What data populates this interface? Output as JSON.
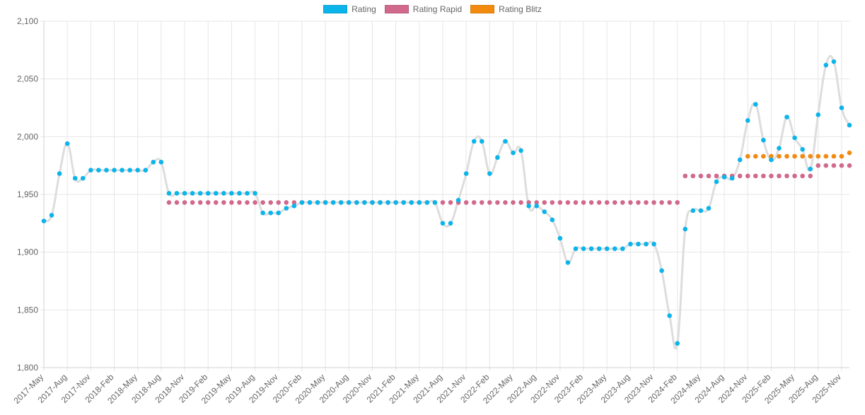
{
  "chart_data": {
    "type": "line",
    "title": "",
    "xlabel": "",
    "ylabel": "",
    "ylim": [
      1800,
      2100
    ],
    "yticks": [
      1800,
      1850,
      1900,
      1950,
      2000,
      2050,
      2100
    ],
    "ytick_labels": [
      "1,800",
      "1,850",
      "1,900",
      "1,950",
      "2,000",
      "2,050",
      "2,100"
    ],
    "grid": true,
    "legend_position": "top-center",
    "x_labels": [
      "2017-May",
      "2017-Aug",
      "2017-Nov",
      "2018-Feb",
      "2018-May",
      "2018-Aug",
      "2018-Nov",
      "2019-Feb",
      "2019-May",
      "2019-Aug",
      "2019-Nov",
      "2020-Feb",
      "2020-May",
      "2020-Aug",
      "2020-Nov",
      "2021-Feb",
      "2021-May",
      "2021-Aug",
      "2021-Nov",
      "2022-Feb",
      "2022-May",
      "2022-Aug",
      "2022-Nov",
      "2023-Feb",
      "2023-May",
      "2023-Aug",
      "2023-Nov",
      "2024-Feb",
      "2024-May",
      "2024-Aug",
      "2024-Nov",
      "2025-Feb",
      "2025-May",
      "2025-Aug",
      "2025-Nov"
    ],
    "x": [
      "2017-05",
      "2017-06",
      "2017-07",
      "2017-08",
      "2017-09",
      "2017-10",
      "2017-11",
      "2017-12",
      "2018-01",
      "2018-02",
      "2018-03",
      "2018-04",
      "2018-05",
      "2018-06",
      "2018-07",
      "2018-08",
      "2018-09",
      "2018-10",
      "2018-11",
      "2018-12",
      "2019-01",
      "2019-02",
      "2019-03",
      "2019-04",
      "2019-05",
      "2019-06",
      "2019-07",
      "2019-08",
      "2019-09",
      "2019-10",
      "2019-11",
      "2019-12",
      "2020-01",
      "2020-02",
      "2020-03",
      "2020-04",
      "2020-05",
      "2020-06",
      "2020-07",
      "2020-08",
      "2020-09",
      "2020-10",
      "2020-11",
      "2020-12",
      "2021-01",
      "2021-02",
      "2021-03",
      "2021-04",
      "2021-05",
      "2021-06",
      "2021-07",
      "2021-08",
      "2021-09",
      "2021-10",
      "2021-11",
      "2021-12",
      "2022-01",
      "2022-02",
      "2022-03",
      "2022-04",
      "2022-05",
      "2022-06",
      "2022-07",
      "2022-08",
      "2022-09",
      "2022-10",
      "2022-11",
      "2022-12",
      "2023-01",
      "2023-02",
      "2023-03",
      "2023-04",
      "2023-05",
      "2023-06",
      "2023-07",
      "2023-08",
      "2023-09",
      "2023-10",
      "2023-11",
      "2023-12",
      "2024-01",
      "2024-02",
      "2024-03",
      "2024-04",
      "2024-05",
      "2024-06",
      "2024-07",
      "2024-08",
      "2024-09",
      "2024-10",
      "2024-11",
      "2024-12",
      "2025-01",
      "2025-02",
      "2025-03",
      "2025-04",
      "2025-05",
      "2025-06",
      "2025-07",
      "2025-08",
      "2025-09",
      "2025-10",
      "2025-11",
      "2025-12"
    ],
    "series": [
      {
        "name": "Rating",
        "color": "#0bb4ea",
        "line_color": "#dddddd",
        "values": [
          1927,
          1932,
          1968,
          1994,
          1964,
          1964,
          1971,
          1971,
          1971,
          1971,
          1971,
          1971,
          1971,
          1971,
          1978,
          1978,
          1951,
          1951,
          1951,
          1951,
          1951,
          1951,
          1951,
          1951,
          1951,
          1951,
          1951,
          1951,
          1934,
          1934,
          1934,
          1938,
          1940,
          1943,
          1943,
          1943,
          1943,
          1943,
          1943,
          1943,
          1943,
          1943,
          1943,
          1943,
          1943,
          1943,
          1943,
          1943,
          1943,
          1943,
          1943,
          1925,
          1925,
          1945,
          1968,
          1996,
          1996,
          1968,
          1982,
          1996,
          1986,
          1988,
          1940,
          1940,
          1935,
          1928,
          1912,
          1891,
          1903,
          1903,
          1903,
          1903,
          1903,
          1903,
          1903,
          1907,
          1907,
          1907,
          1907,
          1884,
          1845,
          1821,
          1920,
          1936,
          1936,
          1938,
          1961,
          1965,
          1964,
          1980,
          2014,
          2028,
          1997,
          1980,
          1990,
          2017,
          1999,
          1989,
          1972,
          2019,
          2062,
          2065,
          2025,
          2010
        ]
      },
      {
        "name": "Rating Rapid",
        "color": "#d1698c",
        "values": [
          null,
          null,
          null,
          null,
          null,
          null,
          null,
          null,
          null,
          null,
          null,
          null,
          null,
          null,
          null,
          null,
          1943,
          1943,
          1943,
          1943,
          1943,
          1943,
          1943,
          1943,
          1943,
          1943,
          1943,
          1943,
          1943,
          1943,
          1943,
          1943,
          1943,
          1943,
          1943,
          1943,
          1943,
          1943,
          1943,
          1943,
          1943,
          1943,
          1943,
          1943,
          1943,
          1943,
          1943,
          1943,
          1943,
          1943,
          1943,
          1943,
          1943,
          1943,
          1943,
          1943,
          1943,
          1943,
          1943,
          1943,
          1943,
          1943,
          1943,
          1943,
          1943,
          1943,
          1943,
          1943,
          1943,
          1943,
          1943,
          1943,
          1943,
          1943,
          1943,
          1943,
          1943,
          1943,
          1943,
          1943,
          1943,
          1943,
          1966,
          1966,
          1966,
          1966,
          1966,
          1966,
          1966,
          1966,
          1966,
          1966,
          1966,
          1966,
          1966,
          1966,
          1966,
          1966,
          1966,
          1975,
          1975,
          1975,
          1975,
          1975
        ]
      },
      {
        "name": "Rating Blitz",
        "color": "#f28a0f",
        "values": [
          null,
          null,
          null,
          null,
          null,
          null,
          null,
          null,
          null,
          null,
          null,
          null,
          null,
          null,
          null,
          null,
          null,
          null,
          null,
          null,
          null,
          null,
          null,
          null,
          null,
          null,
          null,
          null,
          null,
          null,
          null,
          null,
          null,
          null,
          null,
          null,
          null,
          null,
          null,
          null,
          null,
          null,
          null,
          null,
          null,
          null,
          null,
          null,
          null,
          null,
          null,
          null,
          null,
          null,
          null,
          null,
          null,
          null,
          null,
          null,
          null,
          null,
          null,
          null,
          null,
          null,
          null,
          null,
          null,
          null,
          null,
          null,
          null,
          null,
          null,
          null,
          null,
          null,
          null,
          null,
          null,
          null,
          null,
          null,
          null,
          null,
          null,
          null,
          null,
          null,
          1983,
          1983,
          1983,
          1983,
          1983,
          1983,
          1983,
          1983,
          1983,
          1983,
          1983,
          1983,
          1983,
          1986
        ]
      }
    ]
  }
}
